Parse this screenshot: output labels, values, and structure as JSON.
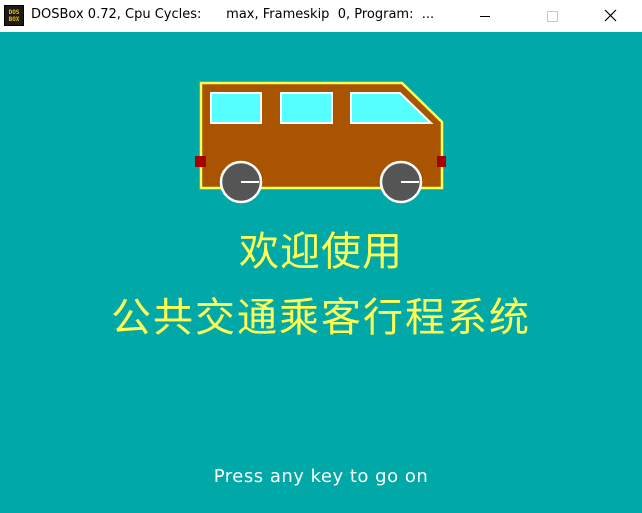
{
  "window": {
    "title": "DOSBox 0.72, Cpu Cycles:      max, Frameskip  0, Program:  ...",
    "app_icon_lines": [
      "DOS",
      "BOX"
    ]
  },
  "screen": {
    "welcome_line_1": "欢迎使用",
    "welcome_line_2": "公共交通乘客行程系统",
    "prompt": "Press any key to go on"
  },
  "colors": {
    "screen_bg": "#00a8a8",
    "heading_text": "#ffff55",
    "prompt_text": "#ffffff",
    "bus_body": "#a85400",
    "bus_outline": "#ffff55",
    "bus_windows": "#55ffff",
    "bus_lights": "#a80000",
    "wheels": "#555555"
  },
  "icons": {
    "minimize": "minimize-icon",
    "maximize": "maximize-icon",
    "close": "close-icon",
    "bus": "bus-illustration"
  }
}
